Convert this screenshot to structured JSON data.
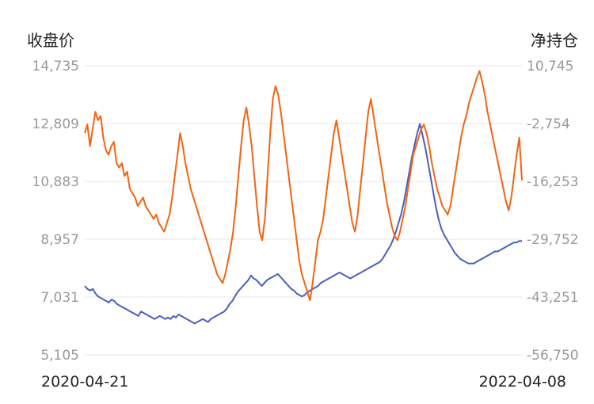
{
  "chart_data": {
    "type": "line",
    "title": "",
    "y_left_label": "收盘价",
    "y_right_label": "净持仓",
    "y_left_ticks": [
      "14,735",
      "12,809",
      "10,883",
      "8,957",
      "7,031",
      "5,105"
    ],
    "y_right_ticks": [
      "10,745",
      "-2,754",
      "-16,253",
      "-29,752",
      "-43,251",
      "-56,750"
    ],
    "y_left_range": [
      5105,
      14735
    ],
    "y_right_range": [
      -56750,
      10745
    ],
    "x_start_label": "2020-04-21",
    "x_end_label": "2022-04-08",
    "grid": true,
    "series": [
      {
        "name": "收盘价",
        "axis": "left",
        "color": "#4a5fc1",
        "values": [
          7400,
          7300,
          7250,
          7300,
          7150,
          7050,
          7000,
          6950,
          6900,
          6850,
          6950,
          6900,
          6800,
          6750,
          6700,
          6650,
          6600,
          6550,
          6500,
          6450,
          6400,
          6550,
          6500,
          6450,
          6400,
          6350,
          6300,
          6350,
          6400,
          6350,
          6300,
          6350,
          6300,
          6400,
          6350,
          6450,
          6400,
          6350,
          6300,
          6250,
          6200,
          6150,
          6200,
          6250,
          6300,
          6250,
          6200,
          6300,
          6350,
          6400,
          6450,
          6500,
          6550,
          6650,
          6800,
          6900,
          7050,
          7200,
          7300,
          7400,
          7500,
          7600,
          7750,
          7650,
          7600,
          7500,
          7400,
          7500,
          7600,
          7650,
          7700,
          7750,
          7800,
          7700,
          7600,
          7500,
          7400,
          7300,
          7250,
          7150,
          7100,
          7050,
          7100,
          7200,
          7250,
          7300,
          7350,
          7400,
          7500,
          7550,
          7600,
          7650,
          7700,
          7750,
          7800,
          7850,
          7800,
          7750,
          7700,
          7650,
          7700,
          7750,
          7800,
          7850,
          7900,
          7950,
          8000,
          8050,
          8100,
          8150,
          8200,
          8300,
          8450,
          8600,
          8750,
          8950,
          9200,
          9500,
          9800,
          10200,
          10700,
          11200,
          11700,
          12100,
          12500,
          12800,
          12400,
          12000,
          11500,
          11000,
          10500,
          10000,
          9600,
          9300,
          9100,
          8950,
          8800,
          8650,
          8500,
          8400,
          8300,
          8250,
          8200,
          8150,
          8150,
          8150,
          8200,
          8250,
          8300,
          8350,
          8400,
          8450,
          8500,
          8550,
          8550,
          8600,
          8650,
          8700,
          8750,
          8800,
          8850,
          8850,
          8900,
          8900
        ]
      },
      {
        "name": "净持仓",
        "axis": "right",
        "color": "#f06414",
        "values": [
          -5000,
          -3000,
          -8000,
          -4000,
          0,
          -2000,
          -1000,
          -6000,
          -9000,
          -10000,
          -8000,
          -7000,
          -12000,
          -13000,
          -12000,
          -15000,
          -14000,
          -18000,
          -19000,
          -20000,
          -22000,
          -21000,
          -20000,
          -22000,
          -23000,
          -24000,
          -25000,
          -24000,
          -26000,
          -27000,
          -28000,
          -26000,
          -24000,
          -20000,
          -15000,
          -10000,
          -5000,
          -8000,
          -12000,
          -15000,
          -18000,
          -20000,
          -22000,
          -24000,
          -26000,
          -28000,
          -30000,
          -32000,
          -34000,
          -36000,
          -38000,
          -39000,
          -40000,
          -38000,
          -35000,
          -32000,
          -28000,
          -22000,
          -15000,
          -8000,
          -2000,
          1000,
          -3000,
          -8000,
          -15000,
          -22000,
          -28000,
          -30000,
          -25000,
          -15000,
          -5000,
          3000,
          6000,
          4000,
          0,
          -5000,
          -10000,
          -15000,
          -20000,
          -25000,
          -30000,
          -35000,
          -38000,
          -40000,
          -42000,
          -44000,
          -40000,
          -35000,
          -30000,
          -28000,
          -25000,
          -20000,
          -15000,
          -10000,
          -5000,
          -2000,
          -6000,
          -10000,
          -14000,
          -18000,
          -22000,
          -26000,
          -28000,
          -24000,
          -18000,
          -12000,
          -6000,
          0,
          3000,
          -1000,
          -5000,
          -9000,
          -13000,
          -17000,
          -21000,
          -24000,
          -27000,
          -29000,
          -30000,
          -28000,
          -25000,
          -22000,
          -18000,
          -14000,
          -10000,
          -8000,
          -6000,
          -4000,
          -3000,
          -5000,
          -8000,
          -12000,
          -15000,
          -18000,
          -20000,
          -22000,
          -23000,
          -24000,
          -22000,
          -18000,
          -14000,
          -10000,
          -6000,
          -3000,
          -1000,
          2000,
          4000,
          6000,
          8000,
          9500,
          7000,
          4000,
          0,
          -3000,
          -6000,
          -9000,
          -12000,
          -15000,
          -18000,
          -21000,
          -23000,
          -20000,
          -15000,
          -10000,
          -6000,
          -16000
        ]
      }
    ]
  }
}
